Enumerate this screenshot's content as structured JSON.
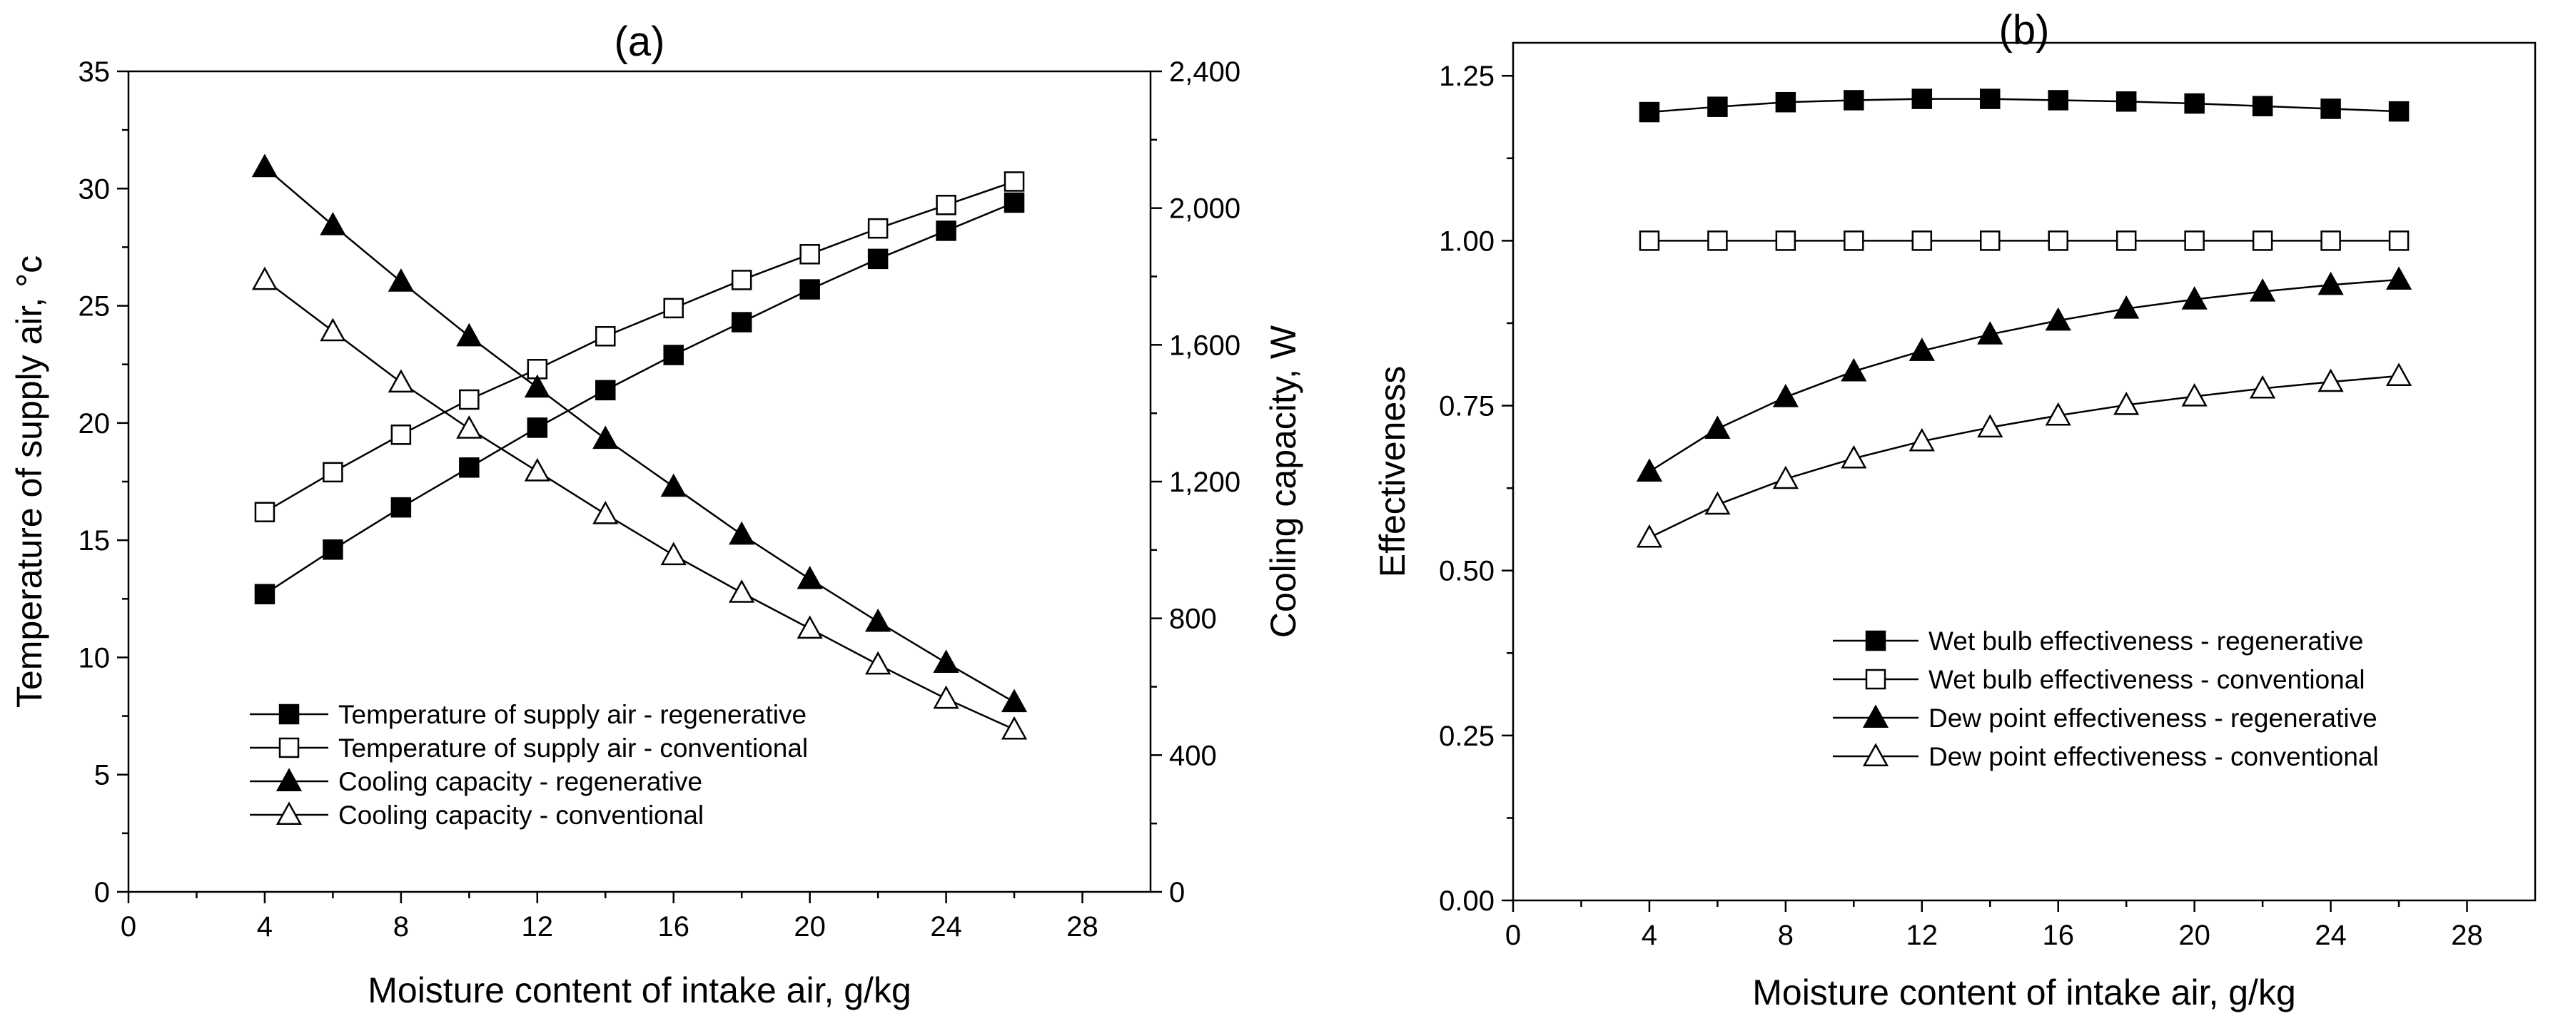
{
  "chart_data": [
    {
      "type": "line",
      "panel_label": "(a)",
      "xlabel": "Moisture content of intake air, g/kg",
      "ylabel": "Temperature of supply air, °c",
      "y2label": "Cooling capacity, W",
      "xlim": [
        0,
        30
      ],
      "ylim": [
        0,
        35
      ],
      "y2lim": [
        0,
        2400
      ],
      "xticks": [
        0,
        4,
        8,
        12,
        16,
        20,
        24,
        28
      ],
      "xtick_labels": [
        "0",
        "4",
        "8",
        "12",
        "16",
        "20",
        "24",
        "28"
      ],
      "yticks": [
        0,
        5,
        10,
        15,
        20,
        25,
        30,
        35
      ],
      "ytick_labels": [
        "0",
        "5",
        "10",
        "15",
        "20",
        "25",
        "30",
        "35"
      ],
      "y2ticks": [
        0,
        400,
        800,
        1200,
        1600,
        2000,
        2400
      ],
      "y2tick_labels": [
        "0",
        "400",
        "800",
        "1,200",
        "1,600",
        "2,000",
        "2,400"
      ],
      "legend_position": "bottom-left",
      "x": [
        4,
        6,
        8,
        10,
        12,
        14,
        16,
        18,
        20,
        22,
        24,
        26
      ],
      "series": [
        {
          "name": "Temperature of supply air - regenerative",
          "marker": "filled-square",
          "axis": "left",
          "values": [
            12.7,
            14.6,
            16.4,
            18.1,
            19.8,
            21.4,
            22.9,
            24.3,
            25.7,
            27.0,
            28.2,
            29.4
          ]
        },
        {
          "name": "Temperature of supply air - conventional",
          "marker": "open-square",
          "axis": "left",
          "values": [
            16.2,
            17.9,
            19.5,
            21.0,
            22.3,
            23.7,
            24.9,
            26.1,
            27.2,
            28.3,
            29.3,
            30.3
          ]
        },
        {
          "name": "Cooling capacity - regenerative",
          "marker": "filled-triangle",
          "axis": "right",
          "values": [
            2120,
            1950,
            1785,
            1625,
            1475,
            1325,
            1185,
            1045,
            915,
            790,
            670,
            555
          ]
        },
        {
          "name": "Cooling capacity - conventional",
          "marker": "open-triangle",
          "axis": "right",
          "values": [
            1790,
            1640,
            1490,
            1355,
            1230,
            1105,
            985,
            875,
            770,
            665,
            565,
            475
          ]
        }
      ]
    },
    {
      "type": "line",
      "panel_label": "(b)",
      "xlabel": "Moisture content of intake air, g/kg",
      "ylabel": "Effectiveness",
      "xlim": [
        0,
        30
      ],
      "ylim": [
        0,
        1.3
      ],
      "xticks": [
        0,
        4,
        8,
        12,
        16,
        20,
        24,
        28
      ],
      "xtick_labels": [
        "0",
        "4",
        "8",
        "12",
        "16",
        "20",
        "24",
        "28"
      ],
      "yticks": [
        0,
        0.25,
        0.5,
        0.75,
        1.0,
        1.25
      ],
      "ytick_labels": [
        "0.00",
        "0.25",
        "0.50",
        "0.75",
        "1.00",
        "1.25"
      ],
      "legend_position": "center",
      "x": [
        4,
        6,
        8,
        10,
        12,
        14,
        16,
        18,
        20,
        22,
        24,
        26
      ],
      "series": [
        {
          "name": "Wet bulb effectiveness - regenerative",
          "marker": "filled-square",
          "values": [
            1.195,
            1.203,
            1.21,
            1.213,
            1.215,
            1.215,
            1.213,
            1.211,
            1.208,
            1.204,
            1.2,
            1.196
          ]
        },
        {
          "name": "Wet bulb effectiveness - conventional",
          "marker": "open-square",
          "values": [
            1.0,
            1.0,
            1.0,
            1.0,
            1.0,
            1.0,
            1.0,
            1.0,
            1.0,
            1.0,
            1.0,
            1.0
          ]
        },
        {
          "name": "Dew point effectiveness - regenerative",
          "marker": "filled-triangle",
          "values": [
            0.65,
            0.715,
            0.763,
            0.802,
            0.833,
            0.858,
            0.879,
            0.897,
            0.911,
            0.923,
            0.933,
            0.941
          ]
        },
        {
          "name": "Dew point effectiveness - conventional",
          "marker": "open-triangle",
          "values": [
            0.55,
            0.6,
            0.639,
            0.67,
            0.696,
            0.717,
            0.735,
            0.751,
            0.764,
            0.776,
            0.786,
            0.795
          ]
        }
      ]
    }
  ]
}
